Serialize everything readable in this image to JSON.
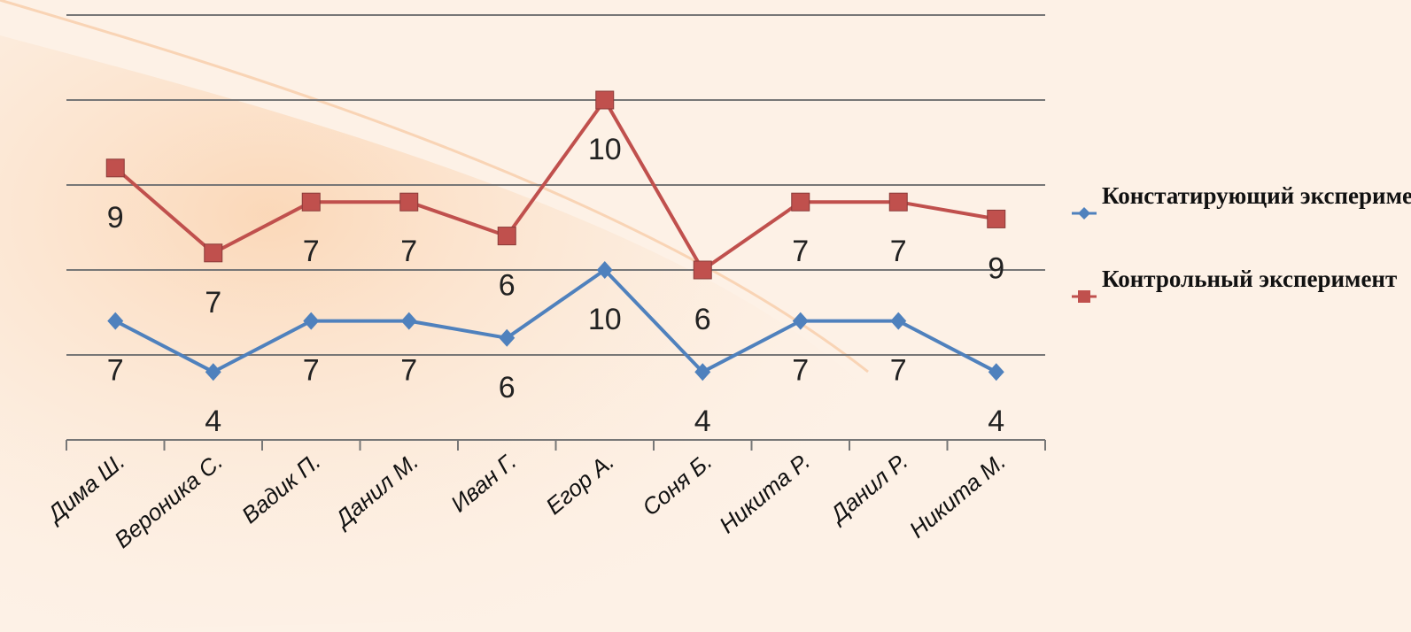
{
  "chart_data": {
    "type": "line",
    "stacked": true,
    "categories": [
      "Дима Ш.",
      "Вероника С.",
      "Вадик П.",
      "Данил М.",
      "Иван Г.",
      "Егор А.",
      "Соня Б.",
      "Никита Р.",
      "Данил Р.",
      "Никита М."
    ],
    "series": [
      {
        "name": "Констатирующий эксперимент",
        "color": "#4f81bd",
        "marker": "diamond",
        "values": [
          7,
          4,
          7,
          7,
          6,
          10,
          4,
          7,
          7,
          4
        ]
      },
      {
        "name": "Контрольный эксперимент",
        "color": "#c0504d",
        "marker": "square",
        "values": [
          9,
          7,
          7,
          7,
          6,
          10,
          6,
          7,
          7,
          9
        ]
      }
    ],
    "ylim": [
      0,
      25
    ],
    "yticks": [
      0,
      5,
      10,
      15,
      20,
      25
    ],
    "grid": true
  }
}
